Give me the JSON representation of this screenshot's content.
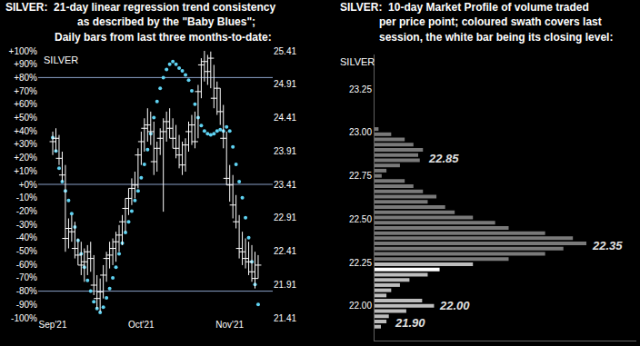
{
  "chart_data": [
    {
      "type": "scatter",
      "title": [
        "SILVER:  21-day linear regression trend consistency",
        "as described by the \"Baby Blues\";",
        "Daily bars from last three months-to-date:"
      ],
      "ylabel": "SILVER",
      "categories": [
        "Sep'21",
        null,
        null,
        null,
        null,
        null,
        null,
        null,
        null,
        null,
        null,
        null,
        null,
        null,
        null,
        null,
        null,
        null,
        null,
        null,
        null,
        null,
        null,
        null,
        null,
        null,
        null,
        null,
        "Oct'21",
        null,
        null,
        null,
        null,
        null,
        null,
        null,
        null,
        null,
        null,
        null,
        null,
        null,
        null,
        null,
        null,
        null,
        null,
        null,
        null,
        null,
        null,
        null,
        null,
        null,
        null,
        null,
        "Nov'21",
        null,
        null,
        null,
        null,
        null,
        null,
        null,
        null,
        null
      ],
      "series": [
        {
          "type": "scatter",
          "marker": "circle",
          "color": "#5fd3f3",
          "axis": "y",
          "values": [
            35,
            25,
            12,
            2,
            -5,
            -12,
            -22,
            -32,
            -42,
            -52,
            -62,
            -72,
            -80,
            -88,
            -93,
            -96,
            -92,
            -85,
            -78,
            -70,
            -62,
            -52,
            -44,
            -36,
            -28,
            -20,
            -12,
            -5,
            5,
            15,
            26,
            38,
            50,
            62,
            72,
            80,
            86,
            90,
            92,
            90,
            87,
            85,
            82,
            78,
            70,
            60,
            50,
            44,
            40,
            38,
            37,
            38,
            40,
            41,
            40,
            43,
            40,
            28,
            15,
            2,
            -10,
            -25,
            -40,
            -58,
            -75,
            -90
          ]
        },
        {
          "type": "hlc",
          "marker": "line-ew",
          "color": "#ffffff",
          "axis": "y2",
          "high": [
            24.2,
            24.25,
            24.15,
            23.9,
            23.7,
            22.9,
            22.95,
            22.85,
            22.6,
            22.55,
            22.45,
            22.5,
            22.55,
            22.35,
            22.05,
            22.0,
            22.2,
            22.4,
            22.55,
            22.6,
            22.7,
            22.8,
            22.95,
            23.2,
            23.35,
            23.5,
            23.6,
            23.95,
            24.2,
            24.4,
            24.55,
            24.5,
            24.35,
            24.05,
            24.25,
            24.4,
            24.5,
            24.55,
            24.4,
            24.3,
            24.15,
            24.05,
            24.1,
            24.35,
            24.45,
            24.5,
            24.9,
            25.3,
            25.41,
            25.35,
            25.4,
            25.2,
            24.95,
            24.85,
            24.6,
            24.2,
            23.7,
            23.55,
            23.25,
            22.95,
            22.7,
            22.6,
            22.55,
            22.5,
            22.4,
            22.35
          ],
          "low": [
            23.85,
            23.9,
            23.7,
            23.45,
            22.4,
            22.45,
            22.55,
            22.3,
            22.2,
            22.05,
            21.95,
            22.05,
            22.1,
            21.75,
            21.55,
            21.5,
            21.7,
            21.95,
            22.15,
            22.2,
            22.25,
            22.4,
            22.5,
            22.7,
            22.95,
            23.1,
            23.2,
            23.35,
            23.7,
            23.9,
            24.05,
            24.0,
            23.55,
            23.6,
            23.85,
            23.0,
            24.05,
            24.1,
            23.95,
            23.8,
            23.65,
            23.55,
            23.6,
            23.9,
            24.0,
            23.95,
            24.1,
            24.7,
            24.95,
            24.9,
            24.85,
            24.55,
            24.45,
            24.3,
            23.95,
            23.4,
            23.15,
            22.9,
            22.75,
            22.3,
            22.2,
            22.15,
            22.05,
            21.95,
            21.85,
            22.0
          ],
          "values": [
            24.05,
            24.1,
            23.8,
            23.55,
            22.6,
            22.75,
            22.7,
            22.45,
            22.35,
            22.2,
            22.25,
            22.4,
            22.3,
            21.9,
            21.7,
            21.8,
            22.05,
            22.3,
            22.35,
            22.45,
            22.55,
            22.65,
            22.85,
            23.05,
            23.2,
            23.35,
            23.4,
            23.85,
            24.05,
            24.25,
            24.3,
            24.2,
            23.75,
            23.95,
            24.1,
            24.2,
            24.35,
            24.25,
            24.1,
            23.95,
            23.85,
            23.7,
            24.0,
            24.2,
            24.3,
            24.05,
            24.8,
            25.2,
            25.25,
            25.1,
            25.3,
            24.7,
            24.85,
            24.5,
            24.1,
            23.5,
            23.4,
            23.1,
            22.85,
            22.45,
            22.4,
            22.3,
            22.25,
            22.1,
            22.0,
            22.2
          ]
        }
      ],
      "ylim": [
        -100,
        100
      ],
      "yticks": [
        {
          "value": 100,
          "label": "+100%"
        },
        {
          "value": 90,
          "label": "+90%"
        },
        {
          "value": 80,
          "label": "+80%"
        },
        {
          "value": 70,
          "label": "+70%"
        },
        {
          "value": 60,
          "label": "+60%"
        },
        {
          "value": 50,
          "label": "+50%"
        },
        {
          "value": 40,
          "label": "+40%"
        },
        {
          "value": 30,
          "label": "+30%"
        },
        {
          "value": 20,
          "label": "+20%"
        },
        {
          "value": 10,
          "label": "+10%"
        },
        {
          "value": 0,
          "label": "+0%"
        },
        {
          "value": -10,
          "label": "-10%"
        },
        {
          "value": -20,
          "label": "-20%"
        },
        {
          "value": -30,
          "label": "-30%"
        },
        {
          "value": -40,
          "label": "-40%"
        },
        {
          "value": -50,
          "label": "-50%"
        },
        {
          "value": -60,
          "label": "-60%"
        },
        {
          "value": -70,
          "label": "-70%"
        },
        {
          "value": -80,
          "label": "-80%"
        },
        {
          "value": -90,
          "label": "-90%"
        },
        {
          "value": -100,
          "label": "-100%"
        }
      ],
      "y2lim": [
        21.41,
        25.41
      ],
      "y2ticks": [
        21.41,
        21.91,
        22.41,
        22.91,
        23.41,
        23.91,
        24.41,
        24.91,
        25.41
      ],
      "reference_lines": [
        80,
        0,
        -80
      ],
      "grid": false
    },
    {
      "type": "bar",
      "orientation": "horizontal",
      "title": [
        "SILVER:  10-day Market Profile of volume traded",
        "per price point; coloured swath covers last",
        "session, the white bar being its closing level:"
      ],
      "ylabel": "SILVER",
      "y": [
        23.02,
        22.99,
        22.96,
        22.93,
        22.9,
        22.87,
        22.84,
        22.81,
        22.78,
        22.75,
        22.72,
        22.69,
        22.66,
        22.63,
        22.6,
        22.57,
        22.54,
        22.51,
        22.48,
        22.45,
        22.42,
        22.39,
        22.36,
        22.33,
        22.3,
        22.27,
        22.24,
        22.21,
        22.18,
        22.15,
        22.12,
        22.09,
        22.06,
        22.03,
        22.0,
        21.97,
        21.94,
        21.91,
        21.88
      ],
      "values": [
        5,
        21,
        38,
        49,
        61,
        55,
        57,
        32,
        15,
        9,
        38,
        49,
        61,
        78,
        67,
        89,
        101,
        124,
        152,
        169,
        215,
        250,
        267,
        238,
        215,
        169,
        124,
        82,
        67,
        44,
        32,
        21,
        15,
        60,
        75,
        40,
        18,
        15,
        8
      ],
      "colors": [
        "#7a7a7a",
        "#7a7a7a",
        "#7a7a7a",
        "#7a7a7a",
        "#7a7a7a",
        "#7a7a7a",
        "#7a7a7a",
        "#7a7a7a",
        "#7a7a7a",
        "#7a7a7a",
        "#7a7a7a",
        "#7a7a7a",
        "#7a7a7a",
        "#7a7a7a",
        "#7a7a7a",
        "#7a7a7a",
        "#7a7a7a",
        "#7a7a7a",
        "#7a7a7a",
        "#7a7a7a",
        "#7a7a7a",
        "#7a7a7a",
        "#7a7a7a",
        "#7a7a7a",
        "#7a7a7a",
        "#7a7a7a",
        "#bdbdbd",
        "#ffffff",
        "#bdbdbd",
        "#bdbdbd",
        "#bdbdbd",
        "#bdbdbd",
        "#bdbdbd",
        "#bdbdbd",
        "#bdbdbd",
        "#bdbdbd",
        "#bdbdbd",
        "#bdbdbd",
        "#bdbdbd"
      ],
      "xlim": [
        0,
        330
      ],
      "ylim": [
        21.8,
        23.45
      ],
      "yticks": [
        {
          "value": 22.0,
          "label": "22.00"
        },
        {
          "value": 22.25,
          "label": "22.25"
        },
        {
          "value": 22.5,
          "label": "22.50"
        },
        {
          "value": 22.75,
          "label": "22.75"
        },
        {
          "value": 23.0,
          "label": "23.00"
        },
        {
          "value": 23.25,
          "label": "23.25"
        }
      ],
      "tick_labels": "y",
      "annotations": [
        {
          "value": 22.85,
          "label": "22.85"
        },
        {
          "value": 22.35,
          "label": "22.35"
        },
        {
          "value": 22.0,
          "label": "22.00"
        },
        {
          "value": 21.9,
          "label": "21.90"
        }
      ],
      "grid": false
    }
  ]
}
